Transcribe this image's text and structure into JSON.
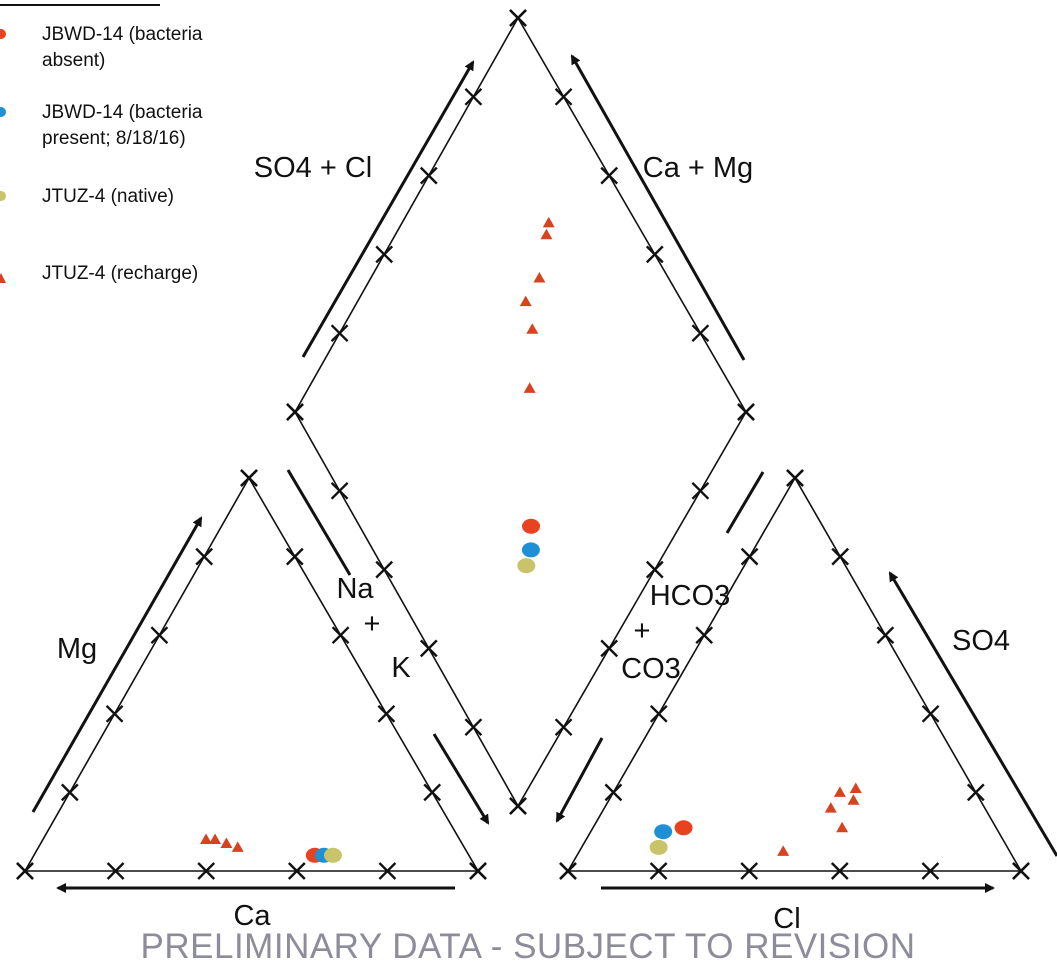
{
  "chart_data": {
    "type": "scatter",
    "subtype": "piper-trilinear",
    "title": "",
    "legend": {
      "placement": "top-left",
      "entries": [
        {
          "text": [
            "JBWD-14 (bacteria",
            "absent)"
          ],
          "color": "#e8421e",
          "marker": "circle"
        },
        {
          "text": [
            "JBWD-14 (bacteria",
            "present; 8/18/16)"
          ],
          "color": "#1f8fd6",
          "marker": "circle"
        },
        {
          "text": [
            "JTUZ-4 (native)"
          ],
          "color": "#c9c36a",
          "marker": "circle"
        },
        {
          "text": [
            "JTUZ-4 (recharge)"
          ],
          "color": "#d8431f",
          "marker": "triangle"
        }
      ]
    },
    "axis_labels": {
      "cation_mg": "Mg",
      "cation_ca": "Ca",
      "cation_na_k": [
        "Na",
        "+",
        "K"
      ],
      "anion_so4": "SO4",
      "anion_cl": "Cl",
      "anion_hco3_co3": [
        "HCO3",
        "+",
        "CO3"
      ],
      "diamond_so4_cl": "SO4 + Cl",
      "diamond_ca_mg": "Ca + Mg"
    },
    "ticks_per_side": 4,
    "cation_points": [
      {
        "series": "JTUZ-4 (recharge)",
        "ca": 56,
        "mg": 8
      },
      {
        "series": "JTUZ-4 (recharge)",
        "ca": 54,
        "mg": 8
      },
      {
        "series": "JTUZ-4 (recharge)",
        "ca": 52,
        "mg": 7
      },
      {
        "series": "JTUZ-4 (recharge)",
        "ca": 50,
        "mg": 6
      },
      {
        "series": "JBWD-14 (bacteria absent)",
        "ca": 34,
        "mg": 4
      },
      {
        "series": "JBWD-14 (bacteria present; 8/18/16)",
        "ca": 32,
        "mg": 4
      },
      {
        "series": "JTUZ-4 (native)",
        "ca": 30,
        "mg": 4
      }
    ],
    "anion_points": [
      {
        "series": "JTUZ-4 (recharge)",
        "cl": 50,
        "so4": 20
      },
      {
        "series": "JTUZ-4 (recharge)",
        "cl": 50,
        "so4": 16
      },
      {
        "series": "JTUZ-4 (recharge)",
        "cl": 55,
        "so4": 11
      },
      {
        "series": "JTUZ-4 (recharge)",
        "cl": 53,
        "so4": 21
      },
      {
        "series": "JTUZ-4 (recharge)",
        "cl": 54,
        "so4": 18
      },
      {
        "series": "JTUZ-4 (recharge)",
        "cl": 45,
        "so4": 5
      },
      {
        "series": "JBWD-14 (bacteria absent)",
        "cl": 20,
        "so4": 11
      },
      {
        "series": "JBWD-14 (bacteria present; 8/18/16)",
        "cl": 16,
        "so4": 10
      },
      {
        "series": "JTUZ-4 (native)",
        "cl": 17,
        "so4": 6
      }
    ],
    "diamond_points": [
      {
        "series": "JTUZ-4 (recharge)",
        "so4_cl": 68,
        "ca_mg": 80
      },
      {
        "series": "JTUZ-4 (recharge)",
        "so4_cl": 67,
        "ca_mg": 78
      },
      {
        "series": "JTUZ-4 (recharge)",
        "so4_cl": 63,
        "ca_mg": 71
      },
      {
        "series": "JTUZ-4 (recharge)",
        "so4_cl": 63,
        "ca_mg": 65
      },
      {
        "series": "JTUZ-4 (recharge)",
        "so4_cl": 58,
        "ca_mg": 63
      },
      {
        "series": "JTUZ-4 (recharge)",
        "so4_cl": 51,
        "ca_mg": 55
      },
      {
        "series": "JBWD-14 (bacteria absent)",
        "so4_cl": 33,
        "ca_mg": 38
      },
      {
        "series": "JBWD-14 (bacteria present; 8/18/16)",
        "so4_cl": 30,
        "ca_mg": 35
      },
      {
        "series": "JTUZ-4 (native)",
        "so4_cl": 29,
        "ca_mg": 32
      }
    ]
  },
  "footer": {
    "watermark": "PRELIMINARY DATA - SUBJECT TO REVISION"
  }
}
